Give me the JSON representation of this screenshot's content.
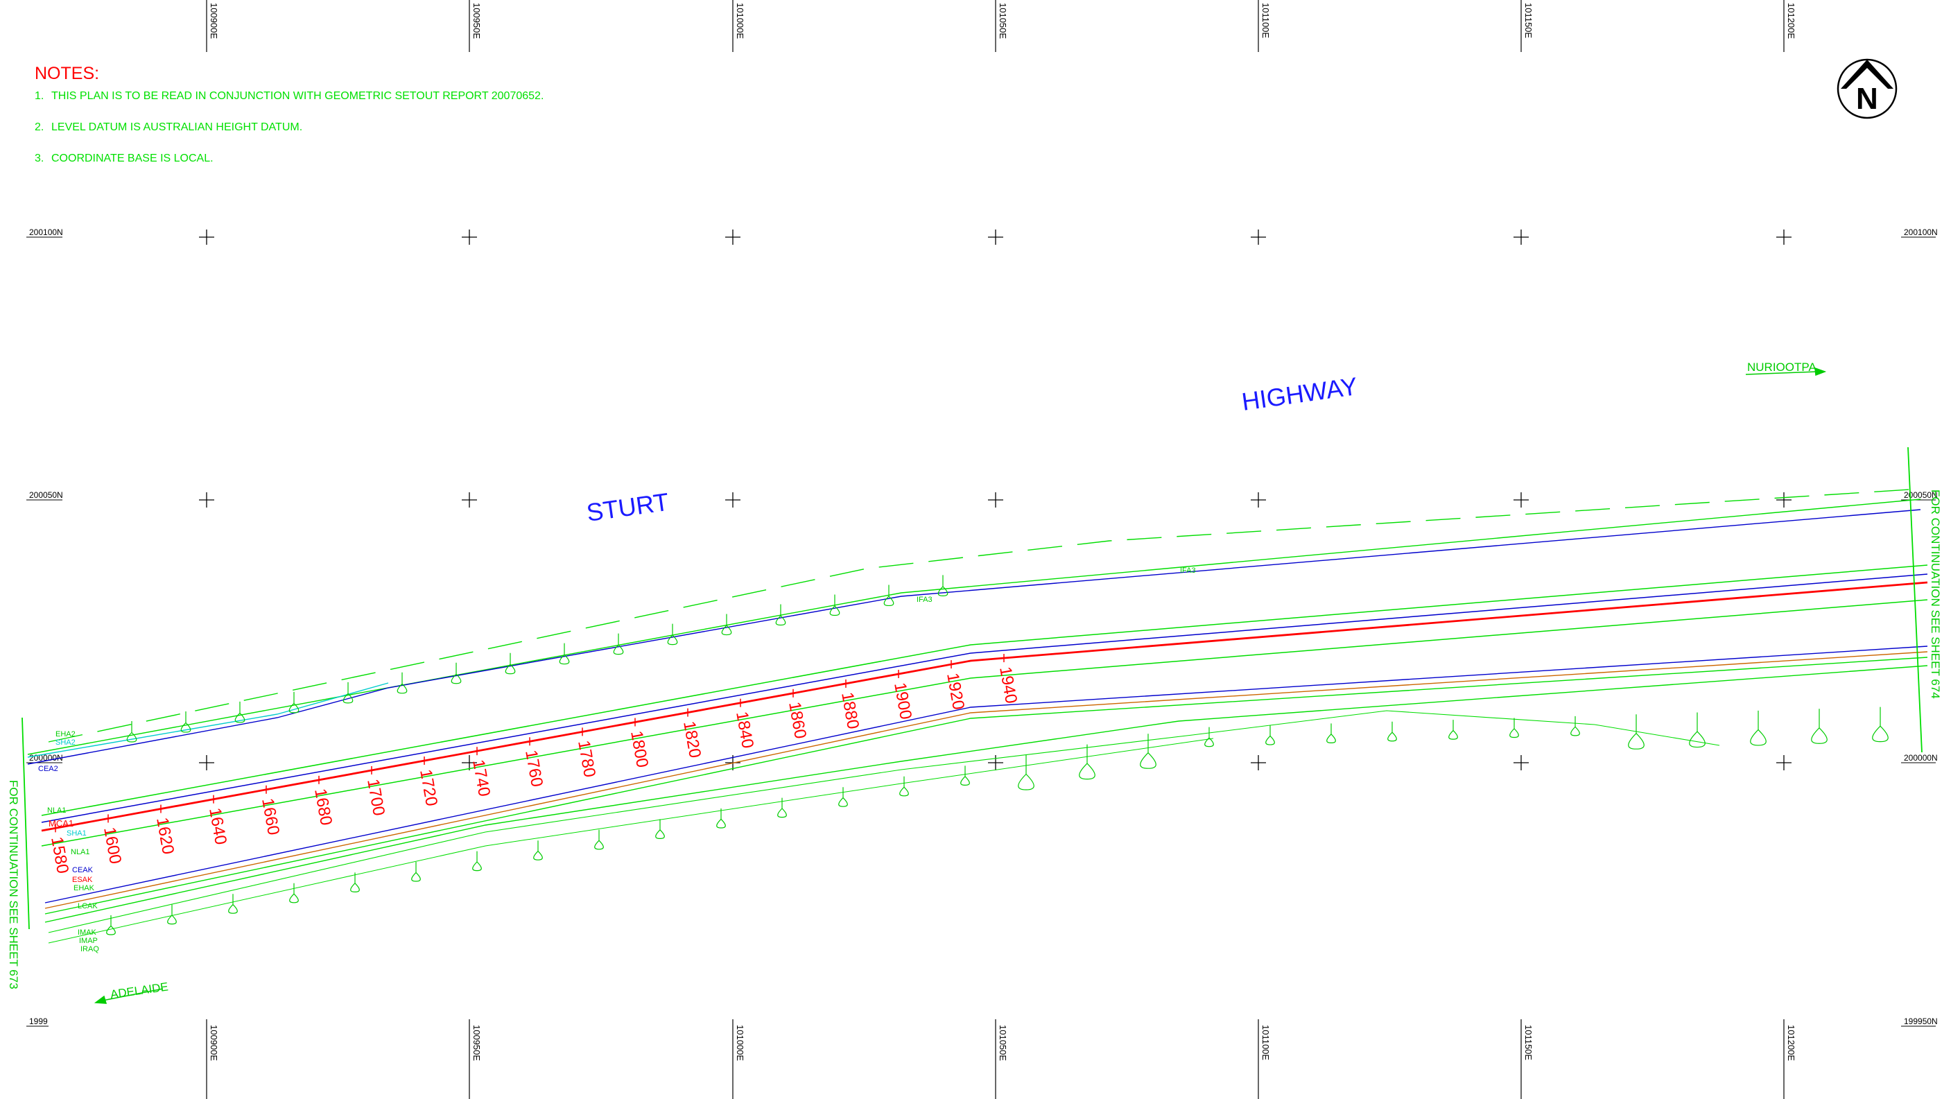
{
  "notes": {
    "heading": "NOTES:",
    "items": [
      {
        "num": "1.",
        "text": "THIS PLAN IS TO BE READ IN CONJUNCTION WITH GEOMETRIC SETOUT REPORT 20070652."
      },
      {
        "num": "2.",
        "text": "LEVEL DATUM IS AUSTRALIAN HEIGHT DATUM."
      },
      {
        "num": "3.",
        "text": "COORDINATE BASE IS LOCAL."
      }
    ]
  },
  "north_arrow": {
    "letter": "N",
    "icon": "north-arrow-icon"
  },
  "road": {
    "name_1": "STURT",
    "name_2": "HIGHWAY"
  },
  "destinations": {
    "east": "NURIOOTPA",
    "west": "ADELAIDE"
  },
  "continuation": {
    "west": "FOR CONTINUATION SEE SHEET 673",
    "east": "FOR CONTINUATION SEE SHEET 674"
  },
  "grid": {
    "eastings": [
      "100900E",
      "100950E",
      "101000E",
      "101050E",
      "101100E",
      "101150E",
      "101200E"
    ],
    "northings_left": [
      "200100N",
      "200050N",
      "200000N",
      "1999"
    ],
    "northings_right": [
      "200100N",
      "200050N",
      "200000N",
      "199950N"
    ]
  },
  "chainages": [
    "1580",
    "1600",
    "1620",
    "1640",
    "1660",
    "1680",
    "1700",
    "1720",
    "1740",
    "1760",
    "1780",
    "1800",
    "1820",
    "1840",
    "1860",
    "1880",
    "1900",
    "1920",
    "1940"
  ],
  "alignment_labels": {
    "north_group": [
      "EHA2",
      "SHA2",
      "CEA2"
    ],
    "centre_group": [
      "NLA1",
      "MCA1",
      "SHA1",
      "NLA1"
    ],
    "south_group": [
      "CEAK",
      "ESAK",
      "EHAK"
    ],
    "south_lower": [
      "LCAK",
      "IMAK",
      "IMAP",
      "IRAQ"
    ],
    "ifa_labels": [
      "IFA3",
      "IFA3"
    ]
  },
  "colors": {
    "grid": "#000000",
    "design_lines": "#00dd00",
    "control_line": "#0000cc",
    "main_centreline": "#ff0000",
    "boundary": "#cc6600",
    "cyan_labels": "#00cccc",
    "road_name": "#1a1aff"
  }
}
